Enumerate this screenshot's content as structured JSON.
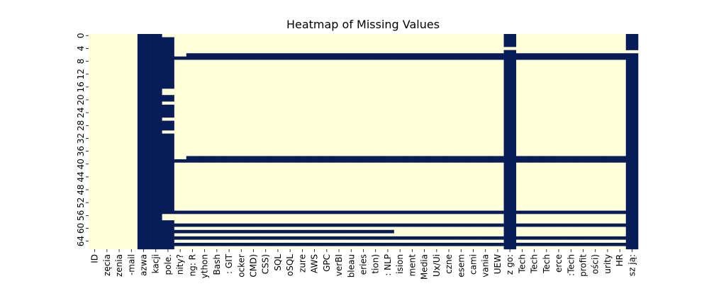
{
  "chart_data": {
    "type": "heatmap",
    "title": "Heatmap of Missing Values",
    "xlabel": "",
    "ylabel": "",
    "colors": {
      "present": "#ffffd9",
      "missing": "#081d58"
    },
    "row_count": 67,
    "y_tick_labels": [
      "0",
      "4",
      "8",
      "12",
      "16",
      "20",
      "24",
      "28",
      "32",
      "36",
      "40",
      "44",
      "48",
      "52",
      "56",
      "60",
      "64"
    ],
    "x_tick_labels": [
      "ID",
      "zęcia",
      "zenia",
      "-mail",
      "azwa",
      "kacji",
      "pole.",
      "nity?",
      "ng: R",
      "ython",
      "Bash",
      ": GIT",
      "ocker",
      "CMD)",
      "CSS)",
      "SQL",
      "oSQL",
      "zure",
      "AWS",
      "GPC",
      "verBI",
      "bleau",
      "eries",
      "tion)",
      ": NLP",
      "ision",
      "ment",
      "Media",
      "Ux/Ui",
      "czne",
      "esem",
      "cami",
      "vania",
      "UEW",
      "z go:",
      "Tech",
      "Tech",
      "Tech",
      "erce",
      ":Tech",
      "profit",
      "ości)",
      "urity",
      "HR",
      "sz ją:"
    ],
    "fully_missing_columns": [
      4,
      5
    ],
    "missing_rows_by_column": {
      "6": [
        1,
        2,
        3,
        4,
        5,
        6,
        7,
        8,
        9,
        10,
        11,
        12,
        13,
        14,
        15,
        16,
        19,
        20,
        22,
        23,
        24,
        25,
        27,
        28,
        29,
        31,
        32,
        33,
        34,
        35,
        36,
        37,
        38,
        39,
        40,
        41,
        42,
        43,
        44,
        45,
        46,
        47,
        48,
        49,
        50,
        51,
        52,
        53,
        54,
        55,
        58,
        59,
        60,
        61,
        62,
        63,
        64,
        65,
        66
      ],
      "34": [
        0,
        1,
        2,
        3,
        5,
        6,
        7,
        8,
        9,
        10,
        11,
        12,
        13,
        14,
        15,
        16,
        17,
        18,
        19,
        20,
        21,
        22,
        23,
        24,
        25,
        26,
        27,
        28,
        29,
        30,
        31,
        32,
        33,
        34,
        35,
        36,
        37,
        38,
        39,
        40,
        41,
        42,
        43,
        44,
        45,
        46,
        47,
        48,
        49,
        50,
        51,
        52,
        53,
        54,
        56,
        57,
        58,
        59,
        60,
        61,
        62,
        63,
        64,
        65,
        66
      ],
      "44": [
        0,
        1,
        2,
        3,
        4,
        6,
        7,
        8,
        9,
        10,
        11,
        12,
        13,
        14,
        15,
        16,
        17,
        18,
        19,
        20,
        21,
        22,
        23,
        24,
        25,
        26,
        27,
        28,
        29,
        30,
        31,
        32,
        33,
        34,
        35,
        36,
        37,
        38,
        39,
        40,
        41,
        42,
        43,
        44,
        45,
        46,
        47,
        48,
        49,
        50,
        51,
        52,
        53,
        54,
        55,
        56,
        57,
        58,
        59,
        60,
        61,
        62,
        63,
        64,
        65,
        66
      ]
    },
    "fully_missing_rows_from_column": {
      "7": [
        7,
        39,
        55,
        59,
        63,
        65
      ],
      "8": [
        6,
        38
      ]
    },
    "partial_missing_rows": [
      {
        "row": 61,
        "from_column": 7,
        "to_column": 24
      }
    ]
  }
}
